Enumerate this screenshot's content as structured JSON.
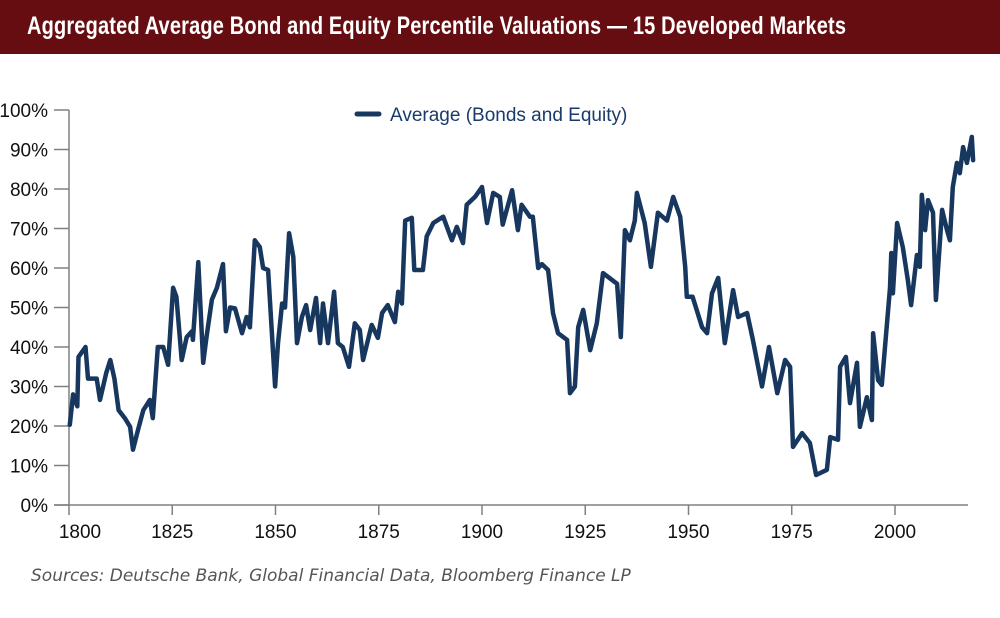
{
  "header": {
    "title": "Aggregated Average Bond and Equity Percentile Valuations — 15 Developed Markets"
  },
  "source": "Sources: Deutsche Bank, Global Financial Data, Bloomberg Finance LP",
  "colors": {
    "header_bg": "#650d10",
    "series": "#17375e",
    "axis": "#808080"
  },
  "chart_data": {
    "type": "line",
    "title": "Aggregated Average Bond and Equity Percentile Valuations — 15 Developed Markets",
    "xlabel": "",
    "ylabel": "",
    "xlim": [
      1800,
      2020
    ],
    "ylim": [
      0,
      100
    ],
    "x_ticks": [
      1800,
      1825,
      1850,
      1875,
      1900,
      1925,
      1950,
      1975,
      2000
    ],
    "x_tick_labels": [
      "1800",
      "1825",
      "1850",
      "1875",
      "1900",
      "1925",
      "1950",
      "1975",
      "2000"
    ],
    "y_ticks": [
      0,
      10,
      20,
      30,
      40,
      50,
      60,
      70,
      80,
      90,
      100
    ],
    "y_tick_labels": [
      "0%",
      "10%",
      "20%",
      "30%",
      "40%",
      "50%",
      "60%",
      "70%",
      "80%",
      "90%",
      "100%"
    ],
    "grid": false,
    "legend": "top-center",
    "series": [
      {
        "name": "Average (Bonds and Equity)",
        "color": "#17375e",
        "points": [
          [
            1800.2,
            20.3
          ],
          [
            1801,
            28
          ],
          [
            1802,
            25
          ],
          [
            1802.3,
            37.5
          ],
          [
            1804,
            40
          ],
          [
            1804.6,
            32
          ],
          [
            1806.7,
            32
          ],
          [
            1807.5,
            26.6
          ],
          [
            1809,
            33.4
          ],
          [
            1810,
            36.7
          ],
          [
            1811,
            32
          ],
          [
            1812,
            24
          ],
          [
            1813.5,
            22
          ],
          [
            1814.8,
            19.8
          ],
          [
            1815.5,
            14
          ],
          [
            1816.7,
            19
          ],
          [
            1818,
            24
          ],
          [
            1819.6,
            26.6
          ],
          [
            1820.3,
            22
          ],
          [
            1821.5,
            40
          ],
          [
            1822.8,
            40
          ],
          [
            1824,
            35.5
          ],
          [
            1825.2,
            55
          ],
          [
            1826,
            52.7
          ],
          [
            1827.3,
            36.7
          ],
          [
            1828.5,
            42.5
          ],
          [
            1829.8,
            44
          ],
          [
            1830,
            41.8
          ],
          [
            1831.3,
            61.5
          ],
          [
            1832.5,
            36
          ],
          [
            1833.3,
            42.5
          ],
          [
            1834.6,
            52
          ],
          [
            1835.8,
            55
          ],
          [
            1837.3,
            61
          ],
          [
            1838,
            44
          ],
          [
            1839,
            50
          ],
          [
            1840.2,
            49.8
          ],
          [
            1841.9,
            43.5
          ],
          [
            1843,
            47.6
          ],
          [
            1843.8,
            45
          ],
          [
            1845,
            67
          ],
          [
            1846.2,
            65.3
          ],
          [
            1847,
            60
          ],
          [
            1848.2,
            59.5
          ],
          [
            1849.9,
            30
          ],
          [
            1850.6,
            41
          ],
          [
            1851.6,
            51
          ],
          [
            1852.3,
            50
          ],
          [
            1853.3,
            68.8
          ],
          [
            1854.3,
            62.8
          ],
          [
            1855.2,
            41
          ],
          [
            1856.4,
            47.6
          ],
          [
            1857.4,
            50.6
          ],
          [
            1858.4,
            44.3
          ],
          [
            1859.8,
            52.4
          ],
          [
            1860.8,
            41
          ],
          [
            1861.5,
            51
          ],
          [
            1862.7,
            41
          ],
          [
            1864.2,
            54
          ],
          [
            1865.1,
            41
          ],
          [
            1866.3,
            40
          ],
          [
            1867.8,
            35
          ],
          [
            1869.2,
            46
          ],
          [
            1870.4,
            44.3
          ],
          [
            1871.2,
            36.7
          ],
          [
            1872.4,
            41.8
          ],
          [
            1873.3,
            45.6
          ],
          [
            1874.8,
            42.3
          ],
          [
            1875.8,
            48.6
          ],
          [
            1877.2,
            50.6
          ],
          [
            1878.9,
            46.3
          ],
          [
            1879.7,
            54
          ],
          [
            1880.6,
            51
          ],
          [
            1881.4,
            72
          ],
          [
            1883,
            72.7
          ],
          [
            1883.6,
            59.5
          ],
          [
            1885.7,
            59.5
          ],
          [
            1886.6,
            68
          ],
          [
            1888.2,
            71.4
          ],
          [
            1890.6,
            73
          ],
          [
            1892.7,
            67
          ],
          [
            1893.9,
            70.4
          ],
          [
            1895.4,
            66.3
          ],
          [
            1896.3,
            76
          ],
          [
            1898.3,
            78
          ],
          [
            1900,
            80.5
          ],
          [
            1901.2,
            71.4
          ],
          [
            1902.7,
            79
          ],
          [
            1904.3,
            78
          ],
          [
            1905,
            71
          ],
          [
            1907.3,
            79.7
          ],
          [
            1908.7,
            69.6
          ],
          [
            1909.6,
            76
          ],
          [
            1911.6,
            73
          ],
          [
            1912.3,
            73
          ],
          [
            1913.6,
            60
          ],
          [
            1914.5,
            61
          ],
          [
            1916,
            59.5
          ],
          [
            1917.2,
            48.6
          ],
          [
            1918.4,
            43.5
          ],
          [
            1920.6,
            41.8
          ],
          [
            1921.3,
            28.3
          ],
          [
            1922.5,
            30
          ],
          [
            1923.3,
            45
          ],
          [
            1924.5,
            49.4
          ],
          [
            1926.2,
            39.2
          ],
          [
            1927.8,
            46
          ],
          [
            1929.3,
            58.7
          ],
          [
            1932.7,
            56
          ],
          [
            1933.6,
            42.5
          ],
          [
            1934.6,
            69.6
          ],
          [
            1935.8,
            67
          ],
          [
            1937,
            72
          ],
          [
            1937.5,
            79
          ],
          [
            1939.4,
            71.4
          ],
          [
            1940.9,
            60.3
          ],
          [
            1942.6,
            74
          ],
          [
            1944.8,
            72
          ],
          [
            1946.3,
            78
          ],
          [
            1948,
            73
          ],
          [
            1949.2,
            60.3
          ],
          [
            1949.6,
            52.7
          ],
          [
            1951,
            52.7
          ],
          [
            1953.3,
            45
          ],
          [
            1954.5,
            43.5
          ],
          [
            1955.7,
            53.6
          ],
          [
            1957.2,
            57.5
          ],
          [
            1958.8,
            41
          ],
          [
            1960.8,
            54.4
          ],
          [
            1962,
            47.6
          ],
          [
            1964.2,
            48.6
          ],
          [
            1965.6,
            41.8
          ],
          [
            1967.8,
            30
          ],
          [
            1969.5,
            40
          ],
          [
            1971.5,
            28.3
          ],
          [
            1973.4,
            36.7
          ],
          [
            1974.6,
            35
          ],
          [
            1975.3,
            14.7
          ],
          [
            1977.5,
            18.2
          ],
          [
            1979.4,
            15.7
          ],
          [
            1980.9,
            7.6
          ],
          [
            1983.5,
            8.9
          ],
          [
            1984.3,
            17.2
          ],
          [
            1986.2,
            16.5
          ],
          [
            1986.7,
            35
          ],
          [
            1988.1,
            37.5
          ],
          [
            1989.1,
            25.8
          ],
          [
            1990.8,
            36
          ],
          [
            1991.5,
            19.8
          ],
          [
            1993.2,
            27.3
          ],
          [
            1994.4,
            21.5
          ],
          [
            1994.7,
            43.5
          ],
          [
            1995.9,
            31.6
          ],
          [
            1996.8,
            30.4
          ],
          [
            1998.8,
            55
          ],
          [
            1999.1,
            63.8
          ],
          [
            1999.5,
            53.6
          ],
          [
            2000.5,
            71.4
          ],
          [
            2001.9,
            65.3
          ],
          [
            2003.1,
            57
          ],
          [
            2003.9,
            50.6
          ],
          [
            2005.3,
            63.3
          ],
          [
            2006,
            60.3
          ],
          [
            2006.5,
            78.5
          ],
          [
            2007.3,
            69.6
          ],
          [
            2008,
            77.2
          ],
          [
            2009.2,
            74
          ],
          [
            2009.9,
            51.9
          ],
          [
            2011.4,
            74.7
          ],
          [
            2012.6,
            69.6
          ],
          [
            2013.3,
            67
          ],
          [
            2014,
            80.5
          ],
          [
            2015,
            86.6
          ],
          [
            2015.7,
            84
          ],
          [
            2016.5,
            90.6
          ],
          [
            2017.4,
            86.6
          ],
          [
            2018.6,
            93.2
          ],
          [
            2018.9,
            87.3
          ]
        ]
      }
    ]
  }
}
